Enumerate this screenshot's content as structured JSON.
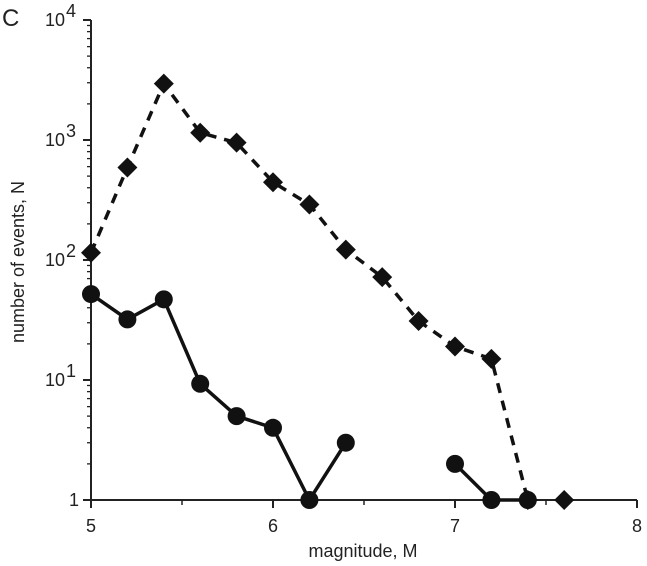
{
  "panel_label": "C",
  "chart_data": {
    "type": "line",
    "xlabel": "magnitude, M",
    "ylabel": "number of events, N",
    "xlim": [
      5,
      8
    ],
    "ylim": [
      1,
      10000
    ],
    "yscale": "log",
    "grid": false,
    "x_ticks": [
      {
        "value": 5,
        "label": "5"
      },
      {
        "value": 6,
        "label": "6"
      },
      {
        "value": 7,
        "label": "7"
      },
      {
        "value": 8,
        "label": "8"
      }
    ],
    "y_ticks": [
      {
        "value": 1,
        "base": "1",
        "exp": ""
      },
      {
        "value": 10,
        "base": "10",
        "exp": "1"
      },
      {
        "value": 100,
        "base": "10",
        "exp": "2"
      },
      {
        "value": 1000,
        "base": "10",
        "exp": "3"
      },
      {
        "value": 10000,
        "base": "10",
        "exp": "4"
      }
    ],
    "series": [
      {
        "marker": "diamond",
        "line": "dashed",
        "segments": [
          [
            {
              "x": 5.0,
              "y": 115
            },
            {
              "x": 5.2,
              "y": 590
            },
            {
              "x": 5.4,
              "y": 2950
            },
            {
              "x": 5.6,
              "y": 1150
            },
            {
              "x": 5.8,
              "y": 950
            },
            {
              "x": 6.0,
              "y": 445
            },
            {
              "x": 6.2,
              "y": 290
            },
            {
              "x": 6.4,
              "y": 122
            },
            {
              "x": 6.6,
              "y": 72
            },
            {
              "x": 6.8,
              "y": 31
            },
            {
              "x": 7.0,
              "y": 19
            },
            {
              "x": 7.2,
              "y": 15
            },
            {
              "x": 7.4,
              "y": 1
            }
          ]
        ],
        "extra_points": [
          {
            "x": 7.6,
            "y": 1
          }
        ]
      },
      {
        "marker": "circle",
        "line": "solid",
        "segments": [
          [
            {
              "x": 5.0,
              "y": 52
            },
            {
              "x": 5.2,
              "y": 32
            },
            {
              "x": 5.4,
              "y": 47
            },
            {
              "x": 5.6,
              "y": 9.3
            },
            {
              "x": 5.8,
              "y": 5
            },
            {
              "x": 6.0,
              "y": 4
            },
            {
              "x": 6.2,
              "y": 1
            },
            {
              "x": 6.4,
              "y": 3
            }
          ],
          [
            {
              "x": 7.0,
              "y": 2
            },
            {
              "x": 7.2,
              "y": 1
            },
            {
              "x": 7.4,
              "y": 1
            }
          ]
        ],
        "extra_points": []
      }
    ]
  }
}
